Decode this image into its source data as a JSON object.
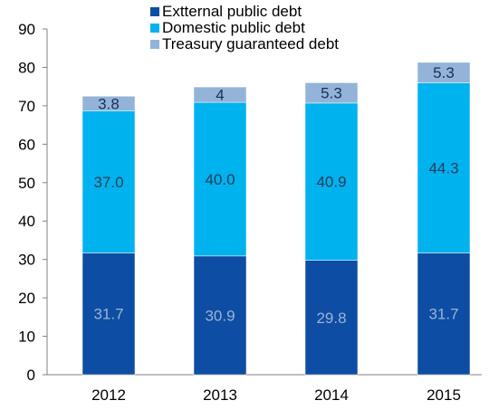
{
  "chart_data": {
    "type": "bar",
    "stacked": true,
    "categories": [
      "2012",
      "2013",
      "2014",
      "2015"
    ],
    "series": [
      {
        "name": "Extternal public debt",
        "values": [
          31.7,
          30.9,
          29.8,
          31.7
        ],
        "labels": [
          "31.7",
          "30.9",
          "29.8",
          "31.7"
        ],
        "color": "#0e4da4",
        "label_color": "#9bb3d4"
      },
      {
        "name": "Domestic public debt",
        "values": [
          37.0,
          40.0,
          40.9,
          44.3
        ],
        "labels": [
          "37.0",
          "40.0",
          "40.9",
          "44.3"
        ],
        "color": "#00b2ee",
        "label_color": "#2b3d57"
      },
      {
        "name": "Treasury guaranteed debt",
        "values": [
          3.8,
          4,
          5.3,
          5.3
        ],
        "labels": [
          "3.8",
          "4",
          "5.3",
          "5.3"
        ],
        "color": "#93b3d9",
        "label_color": "#1b2f55"
      }
    ],
    "y_ticks": [
      "0",
      "10",
      "20",
      "30",
      "40",
      "50",
      "60",
      "70",
      "80",
      "90"
    ],
    "ylim": [
      0,
      90
    ],
    "title": "",
    "xlabel": "",
    "ylabel": "",
    "grid": false,
    "legend_position": "top-center"
  }
}
